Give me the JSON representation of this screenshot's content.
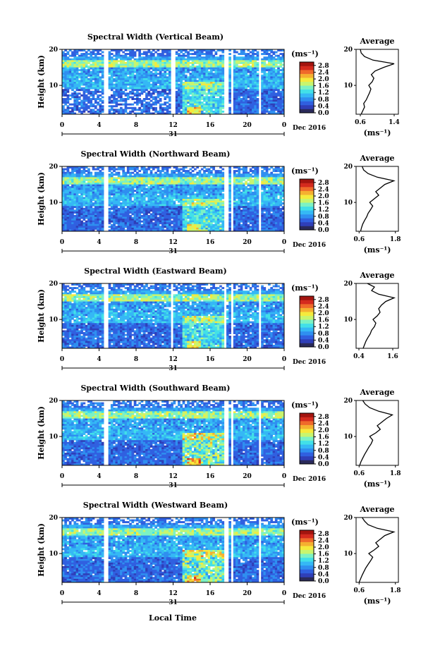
{
  "figure": {
    "x_axis_label": "Local Time",
    "date_label": "Dec 2016",
    "day_label": "31",
    "unit_label": "(ms⁻¹)",
    "height_label": "Height (km)",
    "average_title": "Average"
  },
  "colors": {
    "colormap": [
      "#2a2a5a",
      "#2f3fb8",
      "#3060e0",
      "#2f8ff0",
      "#35b8f5",
      "#42e0e8",
      "#7cf2c4",
      "#c8f56e",
      "#f5ea3c",
      "#f5b030",
      "#ef6a2a",
      "#d42a1e",
      "#a3140f"
    ],
    "profile_line": "#000000"
  },
  "chart_data": [
    {
      "type": "heatmap",
      "title": "Spectral Width (Vertical Beam)",
      "xlabel": "",
      "ylabel": "Height (km)",
      "x_ticks": [
        "0",
        "4",
        "8",
        "12",
        "16",
        "20",
        "0"
      ],
      "y_ticks": [
        "20",
        "10"
      ],
      "xlim": [
        0,
        24
      ],
      "ylim": [
        2,
        20
      ],
      "colorbar": {
        "label": "(ms⁻¹)",
        "ticks": [
          "2.8",
          "2.4",
          "2.0",
          "1.6",
          "1.2",
          "0.8",
          "0.4",
          "0.0"
        ],
        "range": [
          0,
          3.0
        ]
      },
      "data_gaps_hours": [
        [
          4.5,
          5.0
        ],
        [
          11.8,
          12.2
        ],
        [
          17.6,
          18.0
        ],
        [
          18.3,
          18.6
        ],
        [
          21.2,
          21.5
        ]
      ],
      "average_profile": {
        "title": "Average",
        "x_ticks": [
          "0.6",
          "1.4"
        ],
        "xlim": [
          0.5,
          1.5
        ],
        "y_ticks": [
          "20",
          "10"
        ],
        "xlabel": "(ms⁻¹)",
        "height_km": [
          2,
          3,
          4,
          5,
          6,
          7,
          8,
          9,
          10,
          11,
          12,
          13,
          14,
          15,
          16,
          17,
          18,
          19,
          20
        ],
        "values": [
          0.62,
          0.66,
          0.7,
          0.68,
          0.74,
          0.78,
          0.82,
          0.85,
          0.8,
          0.88,
          0.92,
          0.86,
          0.95,
          1.15,
          1.4,
          0.9,
          0.7,
          0.62,
          0.6
        ]
      }
    },
    {
      "type": "heatmap",
      "title": "Spectral Width (Northward Beam)",
      "xlabel": "",
      "ylabel": "Height (km)",
      "x_ticks": [
        "0",
        "4",
        "8",
        "12",
        "16",
        "20",
        "0"
      ],
      "y_ticks": [
        "20",
        "10"
      ],
      "xlim": [
        0,
        24
      ],
      "ylim": [
        2,
        20
      ],
      "colorbar": {
        "label": "(ms⁻¹)",
        "ticks": [
          "2.8",
          "2.4",
          "2.0",
          "1.6",
          "1.2",
          "0.8",
          "0.4",
          "0.0"
        ],
        "range": [
          0,
          3.0
        ]
      },
      "data_gaps_hours": [
        [
          4.6,
          5.0
        ],
        [
          17.6,
          17.9
        ],
        [
          18.2,
          18.5
        ],
        [
          21.2,
          21.5
        ]
      ],
      "average_profile": {
        "title": "Average",
        "x_ticks": [
          "0.6",
          "1.8"
        ],
        "xlim": [
          0.5,
          1.9
        ],
        "y_ticks": [
          "20",
          "10"
        ],
        "xlabel": "(ms⁻¹)",
        "height_km": [
          2,
          3,
          4,
          5,
          6,
          7,
          8,
          9,
          10,
          11,
          12,
          13,
          14,
          15,
          16,
          17,
          18,
          19,
          20
        ],
        "values": [
          0.65,
          0.68,
          0.72,
          0.78,
          0.85,
          0.9,
          0.98,
          1.05,
          0.95,
          1.1,
          1.25,
          1.15,
          1.3,
          1.45,
          1.75,
          1.2,
          0.9,
          0.75,
          0.7
        ]
      }
    },
    {
      "type": "heatmap",
      "title": "Spectral Width (Eastward Beam)",
      "xlabel": "",
      "ylabel": "Height (km)",
      "x_ticks": [
        "0",
        "4",
        "8",
        "12",
        "16",
        "20",
        "0"
      ],
      "y_ticks": [
        "20",
        "10"
      ],
      "xlim": [
        0,
        24
      ],
      "ylim": [
        2,
        20
      ],
      "colorbar": {
        "label": "(ms⁻¹)",
        "ticks": [
          "2.8",
          "2.4",
          "2.0",
          "1.6",
          "1.2",
          "0.8",
          "0.4",
          "0.0"
        ],
        "range": [
          0,
          3.0
        ]
      },
      "data_gaps_hours": [
        [
          4.6,
          5.0
        ],
        [
          11.8,
          12.1
        ],
        [
          17.5,
          17.8
        ],
        [
          18.2,
          18.5
        ],
        [
          21.2,
          21.5
        ]
      ],
      "average_profile": {
        "title": "Average",
        "x_ticks": [
          "0.4",
          "1.6"
        ],
        "xlim": [
          0.3,
          1.8
        ],
        "y_ticks": [
          "20",
          "10"
        ],
        "xlabel": "",
        "height_km": [
          2,
          3,
          4,
          5,
          6,
          7,
          8,
          9,
          10,
          11,
          12,
          13,
          14,
          15,
          16,
          17,
          18,
          19,
          20
        ],
        "values": [
          0.55,
          0.6,
          0.65,
          0.72,
          0.8,
          0.85,
          0.95,
          1.0,
          0.9,
          1.05,
          1.15,
          1.1,
          1.2,
          1.35,
          1.65,
          1.1,
          0.85,
          0.95,
          0.7
        ]
      }
    },
    {
      "type": "heatmap",
      "title": "Spectral Width (Southward Beam)",
      "xlabel": "",
      "ylabel": "Height (km)",
      "x_ticks": [
        "0",
        "4",
        "8",
        "12",
        "16",
        "20",
        "0"
      ],
      "y_ticks": [
        "20",
        "10"
      ],
      "xlim": [
        0,
        24
      ],
      "ylim": [
        2,
        20
      ],
      "colorbar": {
        "label": "(ms⁻¹)",
        "ticks": [
          "2.8",
          "2.4",
          "2.0",
          "1.6",
          "1.2",
          "0.8",
          "0.4",
          "0.0"
        ],
        "range": [
          0,
          3.0
        ]
      },
      "data_gaps_hours": [
        [
          4.6,
          5.0
        ],
        [
          17.6,
          17.9
        ],
        [
          18.3,
          18.5
        ],
        [
          21.2,
          21.5
        ]
      ],
      "average_profile": {
        "title": "Average",
        "x_ticks": [
          "0.6",
          "1.8"
        ],
        "xlim": [
          0.5,
          1.9
        ],
        "y_ticks": [
          "20",
          "10"
        ],
        "xlabel": "(ms⁻¹)",
        "height_km": [
          2,
          3,
          4,
          5,
          6,
          7,
          8,
          9,
          10,
          11,
          12,
          13,
          14,
          15,
          16,
          17,
          18,
          19,
          20
        ],
        "values": [
          0.62,
          0.66,
          0.72,
          0.78,
          0.85,
          0.92,
          1.0,
          1.05,
          0.95,
          1.15,
          1.3,
          1.2,
          1.35,
          1.5,
          1.7,
          1.25,
          0.95,
          0.8,
          0.72
        ]
      }
    },
    {
      "type": "heatmap",
      "title": "Spectral Width (Westward Beam)",
      "xlabel": "Local Time",
      "ylabel": "Height (km)",
      "x_ticks": [
        "0",
        "4",
        "8",
        "12",
        "16",
        "20",
        "0"
      ],
      "y_ticks": [
        "20",
        "10"
      ],
      "xlim": [
        0,
        24
      ],
      "ylim": [
        2,
        20
      ],
      "colorbar": {
        "label": "(ms⁻¹)",
        "ticks": [
          "2.8",
          "2.4",
          "2.0",
          "1.6",
          "1.2",
          "0.8",
          "0.4",
          "0.0"
        ],
        "range": [
          0,
          3.0
        ]
      },
      "data_gaps_hours": [
        [
          4.6,
          5.0
        ],
        [
          17.6,
          17.9
        ],
        [
          18.3,
          18.5
        ],
        [
          21.2,
          21.5
        ]
      ],
      "average_profile": {
        "title": "Average",
        "x_ticks": [
          "0.6",
          "1.8"
        ],
        "xlim": [
          0.5,
          1.9
        ],
        "y_ticks": [
          "20",
          "10"
        ],
        "xlabel": "(ms⁻¹)",
        "height_km": [
          2,
          3,
          4,
          5,
          6,
          7,
          8,
          9,
          10,
          11,
          12,
          13,
          14,
          15,
          16,
          17,
          18,
          19,
          20
        ],
        "values": [
          0.6,
          0.65,
          0.7,
          0.76,
          0.82,
          0.9,
          0.98,
          1.05,
          0.92,
          1.1,
          1.25,
          1.15,
          1.3,
          1.45,
          1.75,
          1.2,
          0.9,
          0.78,
          0.7
        ]
      }
    }
  ]
}
